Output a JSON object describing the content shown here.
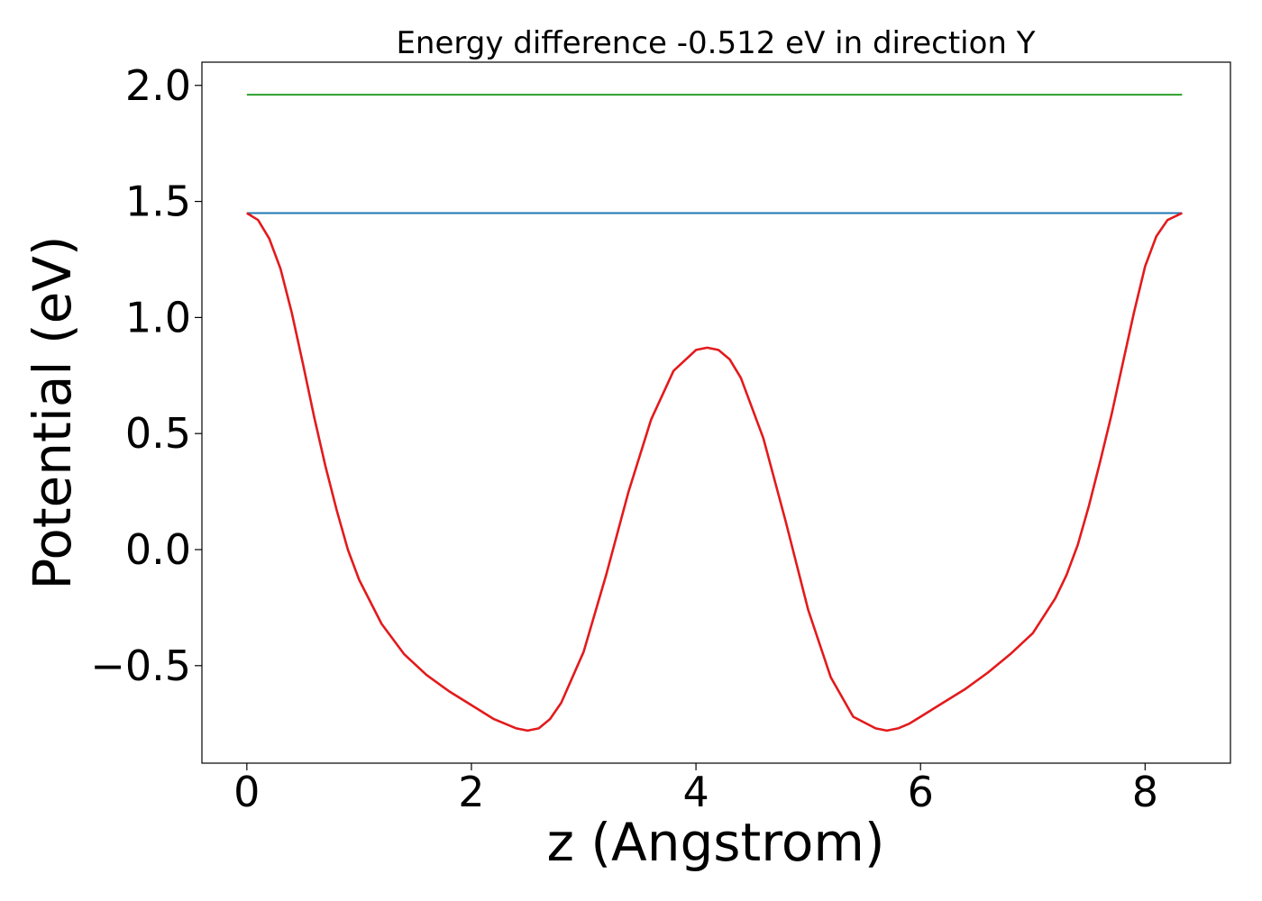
{
  "chart_data": {
    "type": "line",
    "title": "Energy difference -0.512 eV in direction Y",
    "xlabel": "z (Angstrom)",
    "ylabel": "Potential (eV)",
    "xlim": [
      -0.4,
      8.76
    ],
    "ylim": [
      -0.92,
      2.1
    ],
    "xticks": [
      0,
      2,
      4,
      6,
      8
    ],
    "xtick_labels": [
      "0",
      "2",
      "4",
      "6",
      "8"
    ],
    "yticks": [
      -0.5,
      0.0,
      0.5,
      1.0,
      1.5,
      2.0
    ],
    "ytick_labels": [
      "−0.5",
      "0.0",
      "0.5",
      "1.0",
      "1.5",
      "2.0"
    ],
    "grid": false,
    "legend": "none",
    "series": [
      {
        "color": "#2ca02c",
        "x": [
          0,
          8.33
        ],
        "y": [
          1.96,
          1.96
        ]
      },
      {
        "color": "#1f77b4",
        "x": [
          0,
          8.33
        ],
        "y": [
          1.45,
          1.45
        ]
      },
      {
        "color": "#e31a1c",
        "x": [
          0,
          0.1,
          0.2,
          0.3,
          0.4,
          0.5,
          0.6,
          0.7,
          0.8,
          0.9,
          1.0,
          1.2,
          1.4,
          1.6,
          1.8,
          2.0,
          2.2,
          2.4,
          2.5,
          2.6,
          2.7,
          2.8,
          3.0,
          3.2,
          3.4,
          3.6,
          3.8,
          4.0,
          4.1,
          4.2,
          4.3,
          4.4,
          4.6,
          4.8,
          5.0,
          5.2,
          5.4,
          5.6,
          5.7,
          5.8,
          5.9,
          6.0,
          6.2,
          6.4,
          6.6,
          6.8,
          7.0,
          7.2,
          7.3,
          7.4,
          7.5,
          7.6,
          7.7,
          7.8,
          7.9,
          8.0,
          8.1,
          8.2,
          8.33
        ],
        "y": [
          1.45,
          1.42,
          1.34,
          1.21,
          1.02,
          0.8,
          0.57,
          0.36,
          0.17,
          0.0,
          -0.13,
          -0.32,
          -0.45,
          -0.54,
          -0.61,
          -0.67,
          -0.73,
          -0.77,
          -0.78,
          -0.77,
          -0.73,
          -0.66,
          -0.44,
          -0.11,
          0.25,
          0.56,
          0.77,
          0.86,
          0.87,
          0.86,
          0.82,
          0.74,
          0.48,
          0.12,
          -0.26,
          -0.55,
          -0.72,
          -0.77,
          -0.78,
          -0.77,
          -0.75,
          -0.72,
          -0.66,
          -0.6,
          -0.53,
          -0.45,
          -0.36,
          -0.21,
          -0.11,
          0.02,
          0.19,
          0.38,
          0.58,
          0.8,
          1.02,
          1.22,
          1.35,
          1.42,
          1.45
        ]
      }
    ]
  }
}
